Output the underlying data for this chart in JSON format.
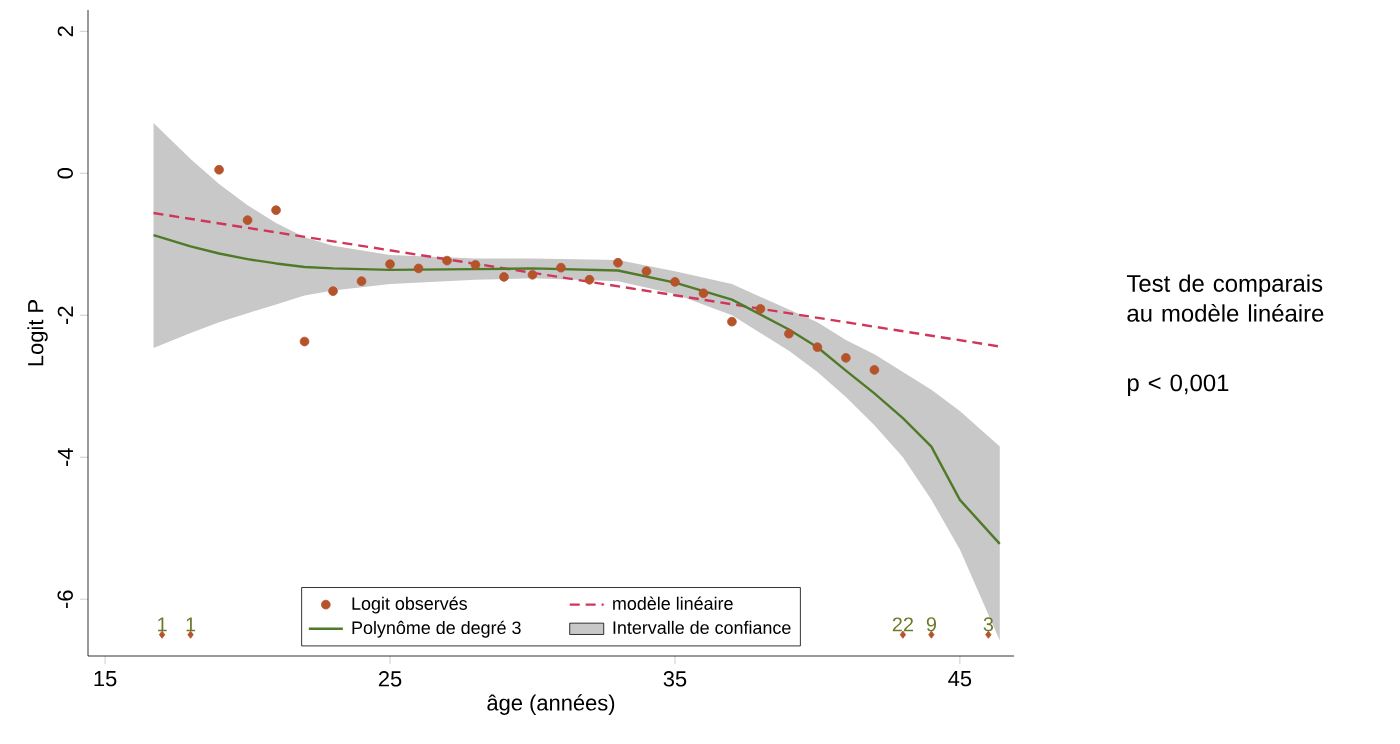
{
  "chart_data": {
    "type": "scatter",
    "xlabel": "âge (années)",
    "ylabel": "Logit P",
    "xlim": [
      14.4,
      46.9
    ],
    "ylim": [
      -6.8,
      2.3
    ],
    "xticks": [
      15,
      25,
      35,
      45
    ],
    "yticks": [
      -6,
      -4,
      -2,
      0,
      2
    ],
    "legend": "bottom",
    "annotations": [
      "Test de comparais\nau modèle linéaire",
      "p < 0,001",
      {
        "text": "1",
        "x": 17,
        "y": -6.5
      },
      {
        "text": "1",
        "x": 18,
        "y": -6.5
      },
      {
        "text": "22",
        "x": 43,
        "y": -6.5
      },
      {
        "text": "9",
        "x": 44,
        "y": -6.5
      },
      {
        "text": "3",
        "x": 46,
        "y": -6.5
      }
    ],
    "series": [
      {
        "name": "Logit observés",
        "type": "scatter",
        "marker": "circle",
        "color": "#b5532b",
        "x": [
          19,
          20,
          21,
          22,
          23,
          24,
          25,
          26,
          27,
          28,
          29,
          30,
          31,
          32,
          33,
          34,
          35,
          36,
          37,
          38,
          39,
          40,
          41,
          42
        ],
        "values": [
          0.05,
          -0.66,
          -0.52,
          -2.37,
          -1.66,
          -1.52,
          -1.28,
          -1.34,
          -1.23,
          -1.29,
          -1.46,
          -1.43,
          -1.33,
          -1.5,
          -1.26,
          -1.38,
          -1.53,
          -1.69,
          -2.09,
          -1.91,
          -2.26,
          -2.45,
          -2.6,
          -2.77
        ]
      },
      {
        "name": "modèle linéaire",
        "type": "line",
        "line_style": "dashed",
        "marker": "none",
        "color": "#d1365a",
        "x": [
          16.7,
          46.4
        ],
        "values": [
          -0.56,
          -2.44
        ]
      },
      {
        "name": "Polynôme de degré 3",
        "type": "line",
        "line_style": "solid",
        "marker": "none",
        "color": "#4f7a28",
        "x": [
          16.7,
          18,
          19,
          20,
          21,
          22,
          23,
          25,
          28,
          30,
          33,
          35,
          37,
          39,
          40,
          41,
          42,
          43,
          44,
          45,
          46.4
        ],
        "values": [
          -0.87,
          -1.03,
          -1.13,
          -1.21,
          -1.27,
          -1.32,
          -1.34,
          -1.36,
          -1.35,
          -1.34,
          -1.37,
          -1.54,
          -1.78,
          -2.2,
          -2.45,
          -2.78,
          -3.1,
          -3.45,
          -3.85,
          -4.6,
          -5.22
        ]
      },
      {
        "name": "Intervalle de confiance",
        "type": "area",
        "color": "#c8c8c8",
        "x": [
          16.7,
          18,
          19,
          20,
          21,
          22,
          23,
          25,
          28,
          30,
          33,
          35,
          37,
          39,
          40,
          41,
          42,
          43,
          44,
          45,
          46.4
        ],
        "values": [
          null,
          null,
          null,
          null,
          null,
          null,
          null,
          null,
          null,
          null,
          null,
          null,
          null,
          null,
          null,
          null,
          null,
          null,
          null,
          null,
          null
        ],
        "upper": [
          0.71,
          0.2,
          -0.15,
          -0.45,
          -0.7,
          -0.9,
          -1.02,
          -1.15,
          -1.2,
          -1.2,
          -1.22,
          -1.38,
          -1.56,
          -1.92,
          -2.1,
          -2.35,
          -2.55,
          -2.8,
          -3.05,
          -3.35,
          -3.85
        ],
        "lower": [
          -2.46,
          -2.25,
          -2.1,
          -1.97,
          -1.85,
          -1.72,
          -1.65,
          -1.56,
          -1.5,
          -1.48,
          -1.52,
          -1.7,
          -2.0,
          -2.5,
          -2.8,
          -3.15,
          -3.55,
          -4.0,
          -4.6,
          -5.3,
          -6.58
        ]
      },
      {
        "type": "scatter",
        "marker": "diamond",
        "color": "#b5532b",
        "x": [
          17,
          18,
          43,
          44,
          46
        ],
        "values": [
          -6.5,
          -6.5,
          -6.5,
          -6.5,
          -6.5
        ]
      }
    ]
  }
}
